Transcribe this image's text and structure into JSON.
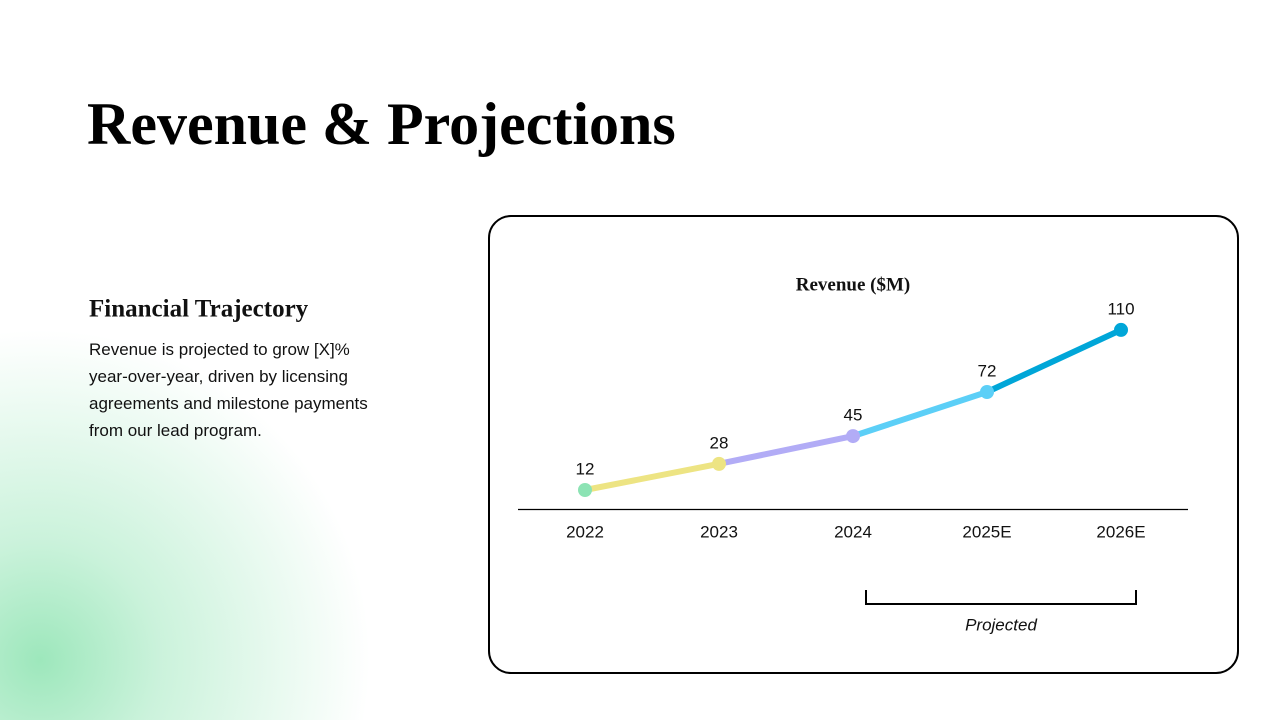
{
  "title": "Revenue & Projections",
  "section": {
    "heading": "Financial Trajectory",
    "body": "Revenue is projected to grow [X]% year-over-year, driven by licensing agreements and milestone payments from our lead program."
  },
  "chart_data": {
    "type": "line",
    "title": "Revenue ($M)",
    "categories": [
      "2022",
      "2023",
      "2024",
      "2025E",
      "2026E"
    ],
    "values": [
      12,
      28,
      45,
      72,
      110
    ],
    "point_colors": [
      "#8ce3b4",
      "#ede483",
      "#b2acf6",
      "#5ccff7",
      "#00a6d8"
    ],
    "ylim": [
      0,
      120
    ],
    "annotation": "Projected"
  }
}
